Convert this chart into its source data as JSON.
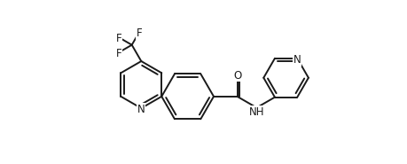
{
  "bg_color": "#ffffff",
  "line_color": "#1a1a1a",
  "line_width": 1.4,
  "font_size": 8.5,
  "fig_width": 4.6,
  "fig_height": 1.85,
  "dpi": 100,
  "xlim": [
    -0.5,
    10.5
  ],
  "ylim": [
    -0.3,
    4.2
  ]
}
